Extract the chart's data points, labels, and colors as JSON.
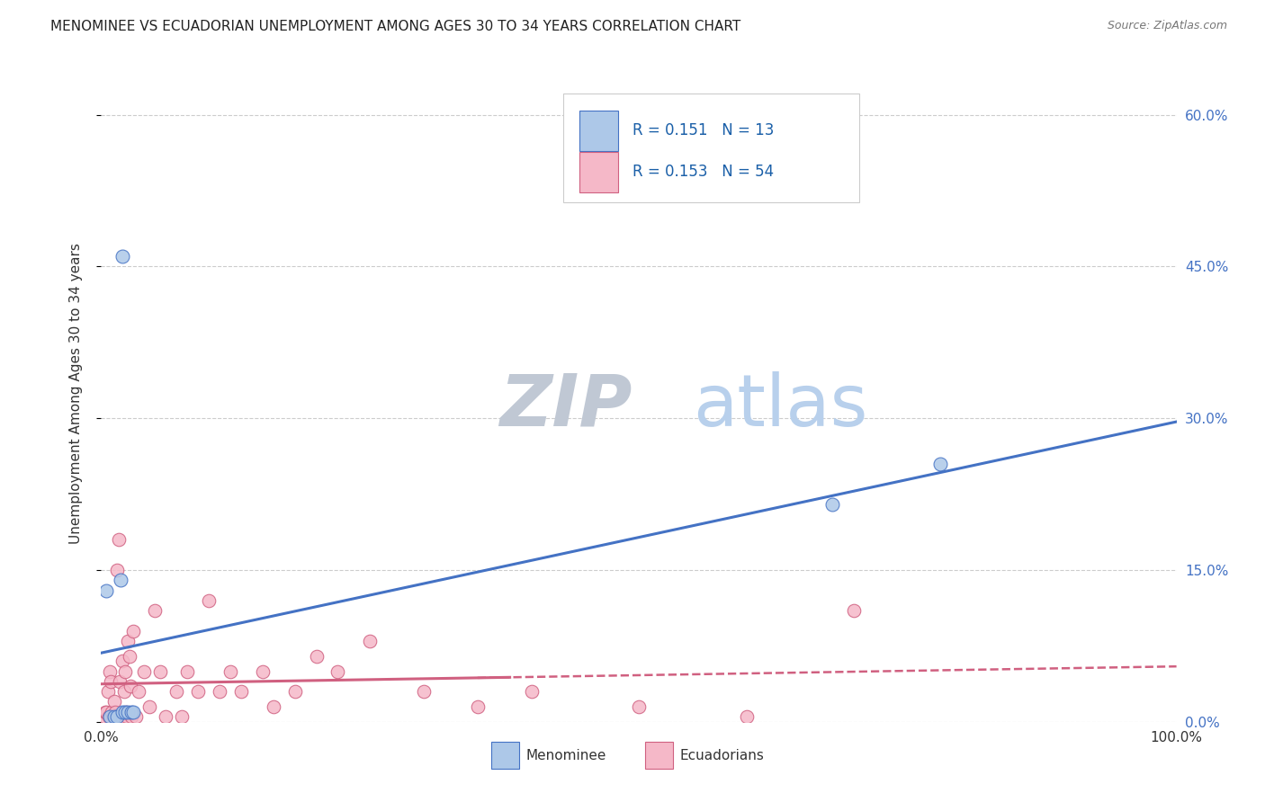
{
  "title": "MENOMINEE VS ECUADORIAN UNEMPLOYMENT AMONG AGES 30 TO 34 YEARS CORRELATION CHART",
  "source": "Source: ZipAtlas.com",
  "ylabel": "Unemployment Among Ages 30 to 34 years",
  "xlim": [
    0.0,
    1.0
  ],
  "ylim": [
    0.0,
    0.65
  ],
  "yticks": [
    0.0,
    0.15,
    0.3,
    0.45,
    0.6
  ],
  "ytick_labels_right": [
    "0.0%",
    "15.0%",
    "30.0%",
    "45.0%",
    "60.0%"
  ],
  "gridline_color": "#cccccc",
  "background_color": "#ffffff",
  "menominee_color": "#adc8e8",
  "menominee_edge_color": "#4472c4",
  "menominee_line_color": "#4472c4",
  "ecuadorian_color": "#f5b8c8",
  "ecuadorian_edge_color": "#d06080",
  "ecuadorian_line_color": "#d06080",
  "R_menominee": 0.151,
  "N_menominee": 13,
  "R_ecuadorian": 0.153,
  "N_ecuadorian": 54,
  "menominee_x": [
    0.005,
    0.008,
    0.012,
    0.015,
    0.018,
    0.02,
    0.022,
    0.025,
    0.028,
    0.03,
    0.68,
    0.78,
    0.02
  ],
  "menominee_y": [
    0.13,
    0.005,
    0.005,
    0.005,
    0.14,
    0.01,
    0.01,
    0.01,
    0.01,
    0.01,
    0.215,
    0.255,
    0.46
  ],
  "ecuadorian_x": [
    0.003,
    0.004,
    0.005,
    0.006,
    0.007,
    0.008,
    0.009,
    0.01,
    0.011,
    0.012,
    0.013,
    0.014,
    0.015,
    0.016,
    0.017,
    0.018,
    0.019,
    0.02,
    0.021,
    0.022,
    0.023,
    0.024,
    0.025,
    0.026,
    0.027,
    0.028,
    0.03,
    0.032,
    0.035,
    0.04,
    0.045,
    0.05,
    0.055,
    0.06,
    0.07,
    0.075,
    0.08,
    0.09,
    0.1,
    0.11,
    0.12,
    0.13,
    0.15,
    0.16,
    0.18,
    0.2,
    0.22,
    0.25,
    0.3,
    0.35,
    0.4,
    0.5,
    0.6,
    0.7
  ],
  "ecuadorian_y": [
    0.005,
    0.01,
    0.01,
    0.03,
    0.005,
    0.05,
    0.04,
    0.01,
    0.005,
    0.02,
    0.01,
    0.005,
    0.15,
    0.18,
    0.04,
    0.005,
    0.005,
    0.06,
    0.03,
    0.05,
    0.01,
    0.005,
    0.08,
    0.065,
    0.035,
    0.005,
    0.09,
    0.005,
    0.03,
    0.05,
    0.015,
    0.11,
    0.05,
    0.005,
    0.03,
    0.005,
    0.05,
    0.03,
    0.12,
    0.03,
    0.05,
    0.03,
    0.05,
    0.015,
    0.03,
    0.065,
    0.05,
    0.08,
    0.03,
    0.015,
    0.03,
    0.015,
    0.005,
    0.11
  ],
  "watermark_zip_color": "#c8d8ee",
  "watermark_atlas_color": "#c0d8f0",
  "legend_text_color": "#1a5fa8",
  "legend_border_color": "#cccccc"
}
